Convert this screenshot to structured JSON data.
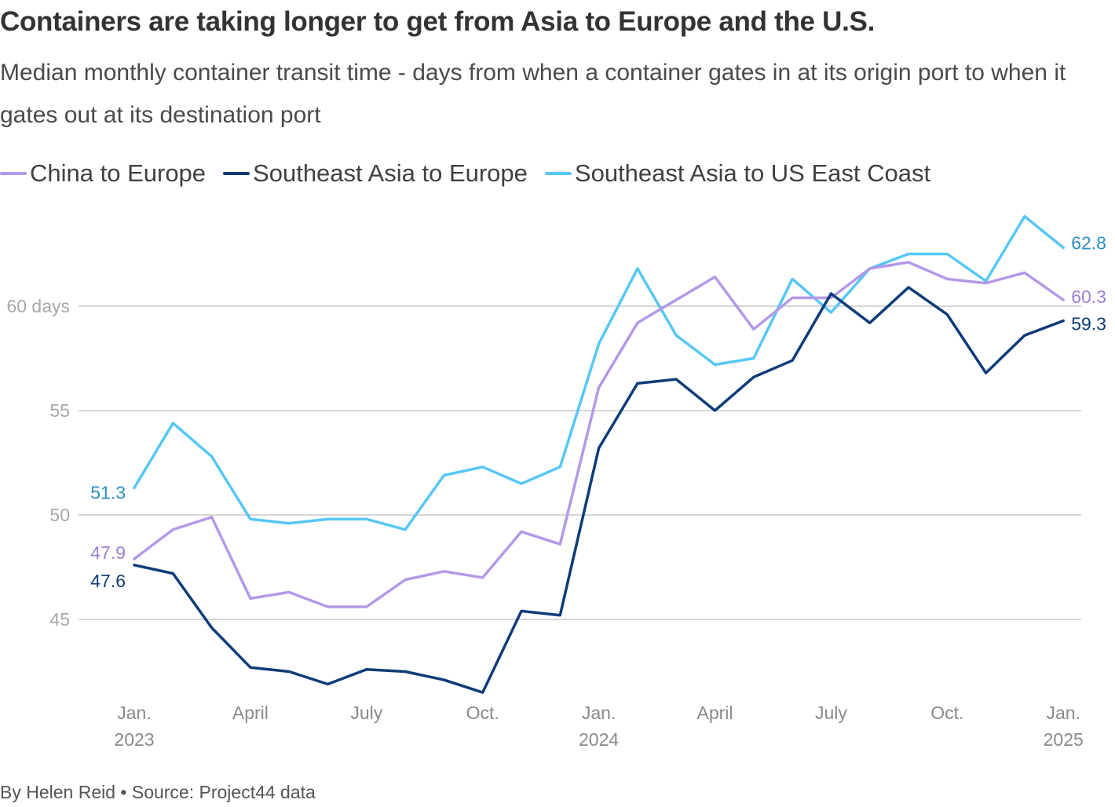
{
  "title": "Containers are taking longer to get from Asia to Europe and the U.S.",
  "subtitle": "Median monthly container transit time - days from when a container gates in at its origin port to when it gates out at its destination port",
  "source": "By Helen Reid • Source: Project44 data",
  "chart_data": {
    "type": "line",
    "x": [
      "2023-01",
      "2023-02",
      "2023-03",
      "2023-04",
      "2023-05",
      "2023-06",
      "2023-07",
      "2023-08",
      "2023-09",
      "2023-10",
      "2023-11",
      "2023-12",
      "2024-01",
      "2024-02",
      "2024-03",
      "2024-04",
      "2024-05",
      "2024-06",
      "2024-07",
      "2024-08",
      "2024-09",
      "2024-10",
      "2024-11",
      "2024-12",
      "2025-01"
    ],
    "ylim": [
      41,
      64.5
    ],
    "y_ticks": [
      {
        "value": 45,
        "label": "45"
      },
      {
        "value": 50,
        "label": "50"
      },
      {
        "value": 55,
        "label": "55"
      },
      {
        "value": 60,
        "label": "60 days"
      }
    ],
    "x_ticks": [
      {
        "x": "2023-01",
        "line1": "Jan.",
        "line2": "2023"
      },
      {
        "x": "2023-04",
        "line1": "April",
        "line2": ""
      },
      {
        "x": "2023-07",
        "line1": "July",
        "line2": ""
      },
      {
        "x": "2023-10",
        "line1": "Oct.",
        "line2": ""
      },
      {
        "x": "2024-01",
        "line1": "Jan.",
        "line2": "2024"
      },
      {
        "x": "2024-04",
        "line1": "April",
        "line2": ""
      },
      {
        "x": "2024-07",
        "line1": "July",
        "line2": ""
      },
      {
        "x": "2024-10",
        "line1": "Oct.",
        "line2": ""
      },
      {
        "x": "2025-01",
        "line1": "Jan.",
        "line2": "2025"
      }
    ],
    "grid": true,
    "legend_position": "top-left",
    "series": [
      {
        "name": "China to Europe",
        "color": "#b499e8",
        "label_color": "#9b80d6",
        "values": [
          47.9,
          49.3,
          49.9,
          46.0,
          46.3,
          45.6,
          45.6,
          46.9,
          47.3,
          47.0,
          49.2,
          48.6,
          56.1,
          59.2,
          60.3,
          61.4,
          58.9,
          60.4,
          60.4,
          61.8,
          62.1,
          61.3,
          61.1,
          61.6,
          60.3
        ],
        "start_label": "47.9",
        "end_label": "60.3"
      },
      {
        "name": "Southeast Asia to Europe",
        "color": "#0f3c78",
        "label_color": "#0f3c78",
        "values": [
          47.6,
          47.2,
          44.6,
          42.7,
          42.5,
          41.9,
          42.6,
          42.5,
          42.1,
          41.5,
          45.4,
          45.2,
          53.2,
          56.3,
          56.5,
          55.0,
          56.6,
          57.4,
          60.6,
          59.2,
          60.9,
          59.6,
          56.8,
          58.6,
          59.3
        ],
        "start_label": "47.6",
        "end_label": "59.3"
      },
      {
        "name": "Southeast Asia to US East Coast",
        "color": "#57c7f5",
        "label_color": "#2a8fc0",
        "values": [
          51.3,
          54.4,
          52.8,
          49.8,
          49.6,
          49.8,
          49.8,
          49.3,
          51.9,
          52.3,
          51.5,
          52.3,
          58.2,
          61.8,
          58.6,
          57.2,
          57.5,
          61.3,
          59.7,
          61.8,
          62.5,
          62.5,
          61.2,
          64.3,
          62.8
        ],
        "start_label": "51.3",
        "end_label": "62.8"
      }
    ]
  }
}
